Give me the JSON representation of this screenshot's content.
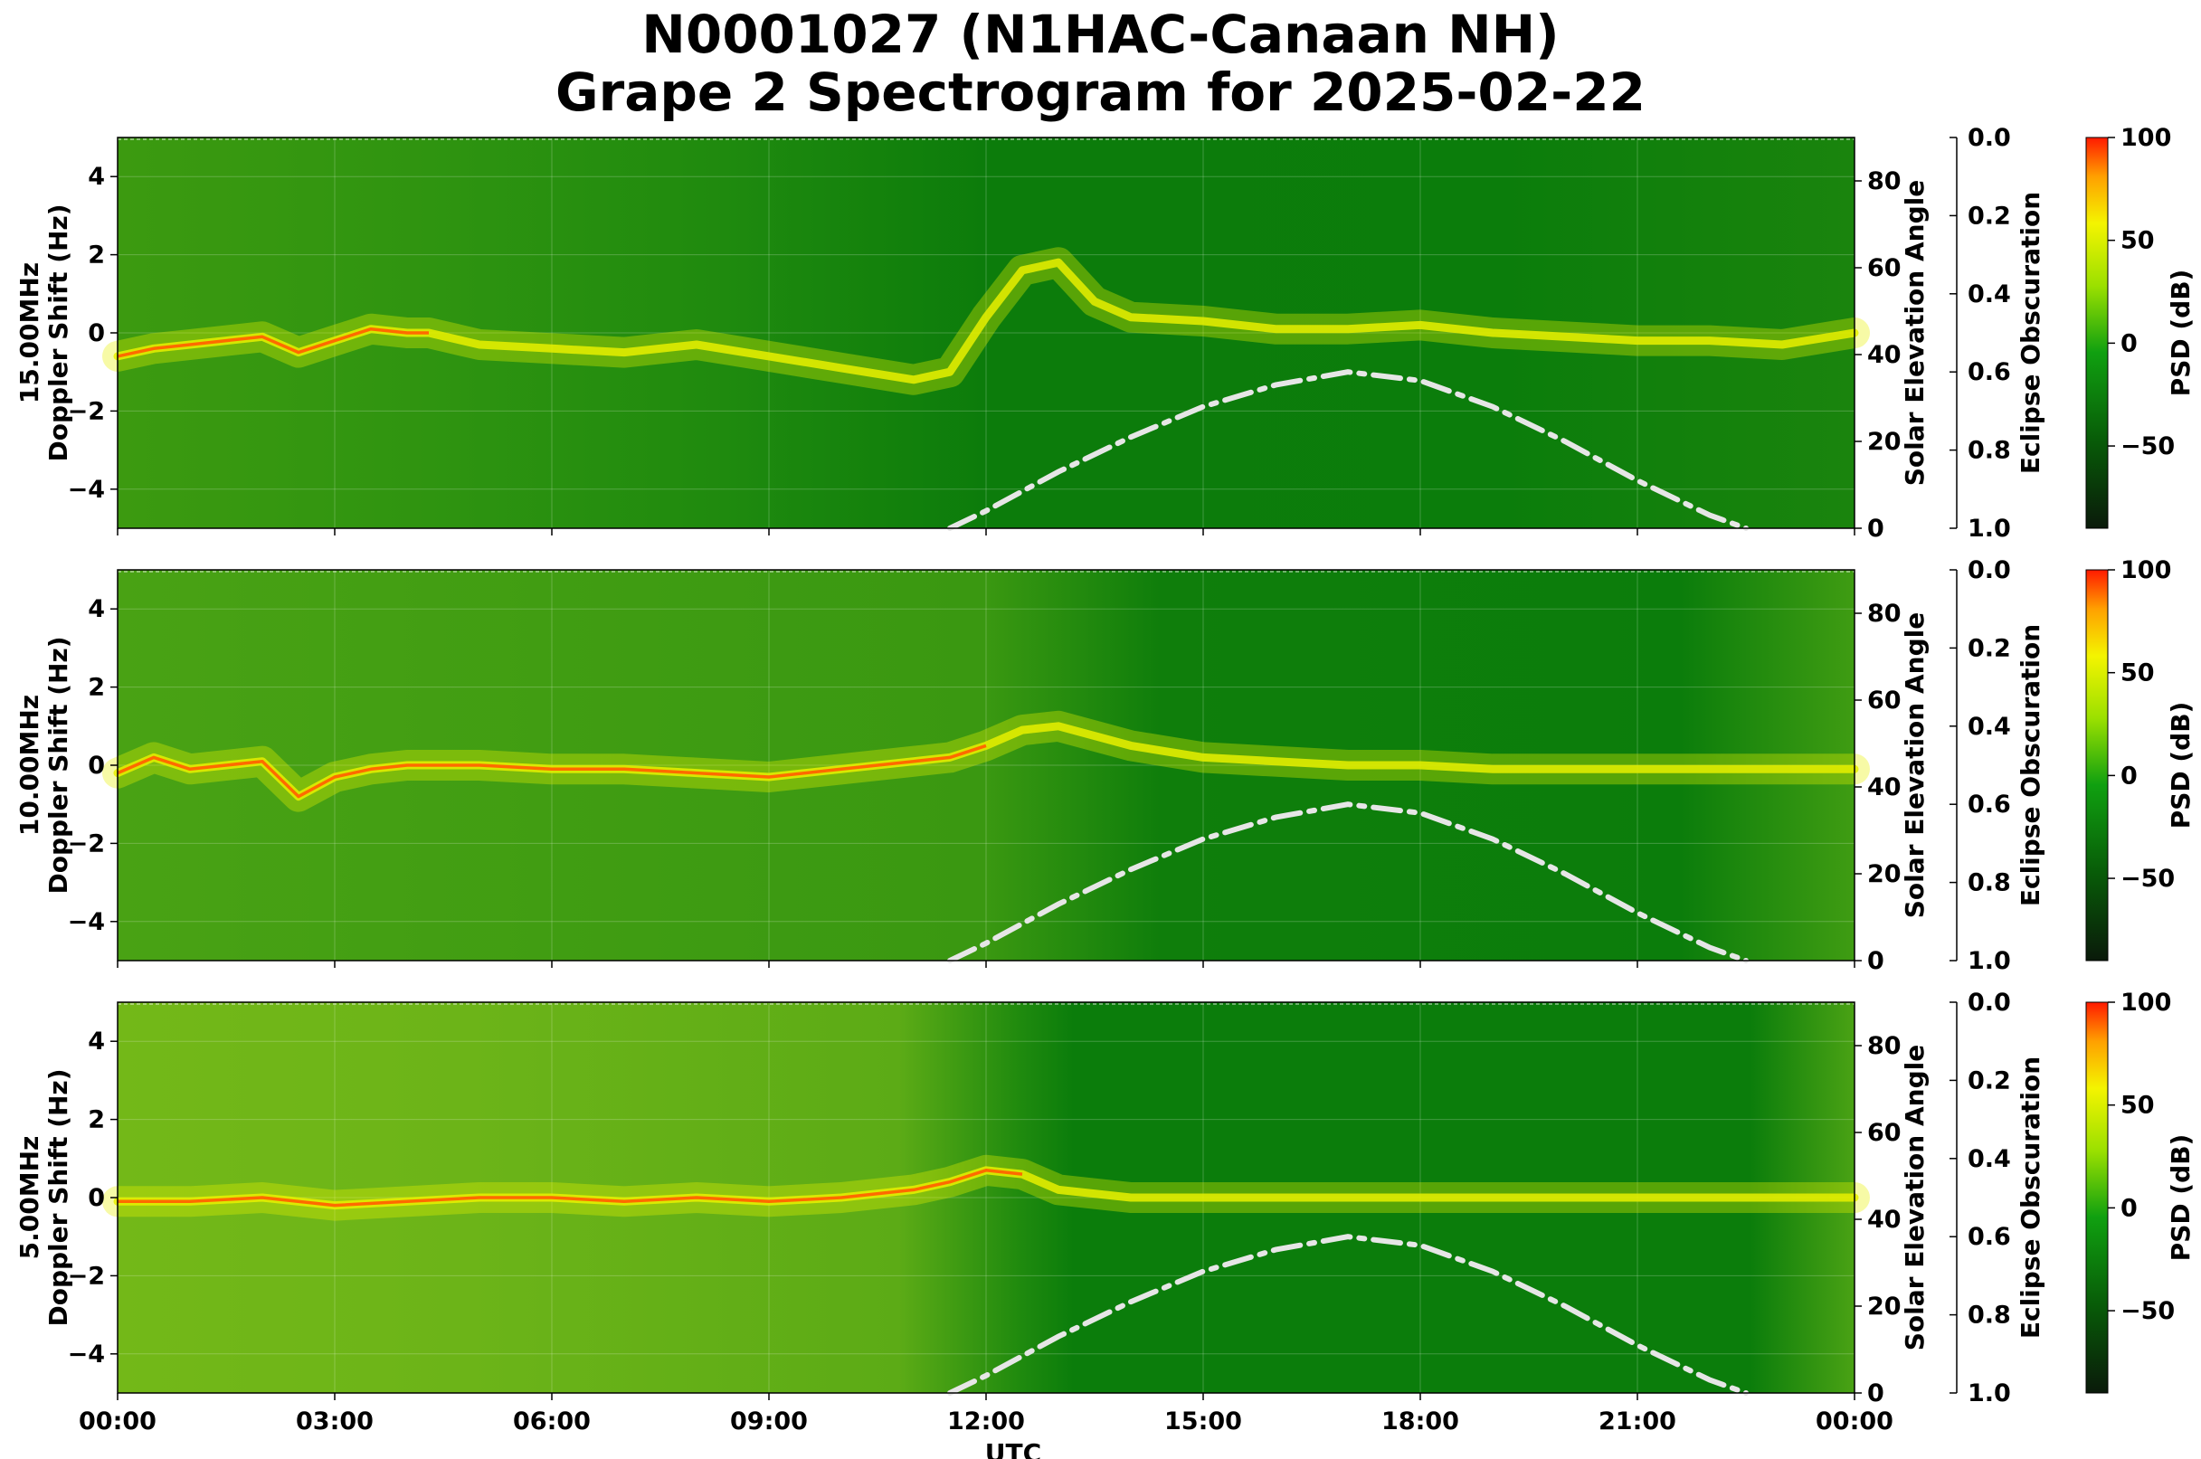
{
  "title_line1": "N0001027 (N1HAC-Canaan NH)",
  "title_line2": "Grape 2 Spectrogram for 2025-02-22",
  "colors": {
    "background_green": "#0b7d0b",
    "signal_yellow": "#e8f000",
    "peak_orange": "#ff6a00",
    "peak_red": "#ff1a00",
    "solar_curve": "#e6e6e6"
  },
  "chart_data": [
    {
      "type": "heatmap",
      "panel": "15.00MHz",
      "ylabel": "15.00MHz\nDoppler Shift (Hz)",
      "ylim": [
        -5,
        5
      ],
      "yticks": [
        4,
        2,
        0,
        -2,
        -4
      ],
      "ytick_labels": [
        "4",
        "2",
        "0",
        "−2",
        "−4"
      ],
      "right_axis1": {
        "label": "Solar Elevation Angle",
        "ylim": [
          0,
          90
        ],
        "ticks": [
          "0",
          "20",
          "40",
          "60",
          "80"
        ]
      },
      "right_axis2": {
        "label": "Eclipse Obscuration",
        "ylim": [
          1.0,
          0.0
        ],
        "ticks": [
          "0.0",
          "0.2",
          "0.4",
          "0.6",
          "0.8",
          "1.0"
        ]
      },
      "colorbar": {
        "label": "PSD (dB)",
        "ticks": [
          "100",
          "50",
          "0",
          "−50"
        ]
      },
      "signal": {
        "x_hours": [
          0,
          0.5,
          1,
          1.5,
          2,
          2.5,
          3,
          3.5,
          4,
          4.3,
          5,
          6,
          7,
          8,
          9,
          10,
          11,
          11.5,
          12,
          12.5,
          13,
          13.5,
          14,
          15,
          16,
          17,
          18,
          19,
          20,
          21,
          22,
          23,
          24
        ],
        "doppler_hz": [
          -0.6,
          -0.4,
          -0.3,
          -0.2,
          -0.1,
          -0.5,
          -0.2,
          0.1,
          0.0,
          0.0,
          -0.3,
          -0.4,
          -0.5,
          -0.3,
          -0.6,
          -0.9,
          -1.2,
          -1.0,
          0.4,
          1.6,
          1.8,
          0.8,
          0.4,
          0.3,
          0.1,
          0.1,
          0.2,
          0.0,
          -0.1,
          -0.2,
          -0.2,
          -0.3,
          0.0
        ],
        "peak_segments_hours": [
          [
            0,
            4.3
          ]
        ]
      },
      "solar_elevation": {
        "x_hours": [
          11.5,
          12,
          13,
          14,
          15,
          16,
          17,
          18,
          19,
          20,
          21,
          22,
          22.5
        ],
        "degrees": [
          0,
          4,
          13,
          21,
          28,
          33,
          36,
          34,
          28,
          20,
          11,
          3,
          0
        ]
      }
    },
    {
      "type": "heatmap",
      "panel": "10.00MHz",
      "ylabel": "10.00MHz\nDoppler Shift (Hz)",
      "ylim": [
        -5,
        5
      ],
      "yticks": [
        4,
        2,
        0,
        -2,
        -4
      ],
      "ytick_labels": [
        "4",
        "2",
        "0",
        "−2",
        "−4"
      ],
      "right_axis1": {
        "label": "Solar Elevation Angle",
        "ylim": [
          0,
          90
        ],
        "ticks": [
          "0",
          "20",
          "40",
          "60",
          "80"
        ]
      },
      "right_axis2": {
        "label": "Eclipse Obscuration",
        "ylim": [
          1.0,
          0.0
        ],
        "ticks": [
          "0.0",
          "0.2",
          "0.4",
          "0.6",
          "0.8",
          "1.0"
        ]
      },
      "colorbar": {
        "label": "PSD (dB)",
        "ticks": [
          "100",
          "50",
          "0",
          "−50"
        ]
      },
      "signal": {
        "x_hours": [
          0,
          0.5,
          1,
          1.5,
          2,
          2.5,
          3,
          3.5,
          4,
          5,
          6,
          7,
          8,
          9,
          10,
          11,
          11.5,
          12,
          12.5,
          13,
          14,
          15,
          16,
          17,
          18,
          19,
          20,
          21,
          22,
          23,
          24
        ],
        "doppler_hz": [
          -0.2,
          0.2,
          -0.1,
          0.0,
          0.1,
          -0.8,
          -0.3,
          -0.1,
          0.0,
          0.0,
          -0.1,
          -0.1,
          -0.2,
          -0.3,
          -0.1,
          0.1,
          0.2,
          0.5,
          0.9,
          1.0,
          0.5,
          0.2,
          0.1,
          0.0,
          0.0,
          -0.1,
          -0.1,
          -0.1,
          -0.1,
          -0.1,
          -0.1
        ],
        "peak_segments_hours": [
          [
            0,
            12
          ]
        ]
      },
      "solar_elevation": {
        "x_hours": [
          11.5,
          12,
          13,
          14,
          15,
          16,
          17,
          18,
          19,
          20,
          21,
          22,
          22.5
        ],
        "degrees": [
          0,
          4,
          13,
          21,
          28,
          33,
          36,
          34,
          28,
          20,
          11,
          3,
          0
        ]
      }
    },
    {
      "type": "heatmap",
      "panel": "5.00MHz",
      "ylabel": "5.00MHz\nDoppler Shift (Hz)",
      "xlabel": "UTC",
      "xticks": [
        "00:00",
        "03:00",
        "06:00",
        "09:00",
        "12:00",
        "15:00",
        "18:00",
        "21:00",
        "00:00"
      ],
      "ylim": [
        -5,
        5
      ],
      "yticks": [
        4,
        2,
        0,
        -2,
        -4
      ],
      "ytick_labels": [
        "4",
        "2",
        "0",
        "−2",
        "−4"
      ],
      "right_axis1": {
        "label": "Solar Elevation Angle",
        "ylim": [
          0,
          90
        ],
        "ticks": [
          "0",
          "20",
          "40",
          "60",
          "80"
        ]
      },
      "right_axis2": {
        "label": "Eclipse Obscuration",
        "ylim": [
          1.0,
          0.0
        ],
        "ticks": [
          "0.0",
          "0.2",
          "0.4",
          "0.6",
          "0.8",
          "1.0"
        ]
      },
      "colorbar": {
        "label": "PSD (dB)",
        "ticks": [
          "100",
          "50",
          "0",
          "−50"
        ]
      },
      "signal": {
        "x_hours": [
          0,
          1,
          2,
          3,
          4,
          5,
          6,
          7,
          8,
          9,
          10,
          11,
          11.5,
          12,
          12.5,
          13,
          14,
          15,
          16,
          17,
          18,
          19,
          20,
          21,
          22,
          23,
          24
        ],
        "doppler_hz": [
          -0.1,
          -0.1,
          0.0,
          -0.2,
          -0.1,
          0.0,
          0.0,
          -0.1,
          0.0,
          -0.1,
          0.0,
          0.2,
          0.4,
          0.7,
          0.6,
          0.2,
          0.0,
          0.0,
          0.0,
          0.0,
          0.0,
          0.0,
          0.0,
          0.0,
          0.0,
          0.0,
          0.0
        ],
        "peak_segments_hours": [
          [
            0,
            12.5
          ]
        ]
      },
      "solar_elevation": {
        "x_hours": [
          11.5,
          12,
          13,
          14,
          15,
          16,
          17,
          18,
          19,
          20,
          21,
          22,
          22.5
        ],
        "degrees": [
          0,
          4,
          13,
          21,
          28,
          33,
          36,
          34,
          28,
          20,
          11,
          3,
          0
        ]
      }
    }
  ]
}
